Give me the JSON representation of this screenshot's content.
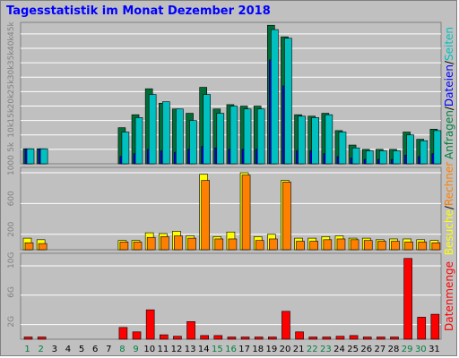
{
  "title": "Tagesstatistik im Monat Dezember 2018",
  "colors": {
    "anfragen": "#008040",
    "dateien": "#0000ff",
    "seiten": "#00c0c0",
    "besuche": "#ffff00",
    "rechner": "#ff8000",
    "datenmenge": "#ff0000",
    "weekday": "#000000",
    "weekend": "#008040"
  },
  "chart_data": [
    {
      "type": "bar",
      "series": [
        {
          "name": "Anfragen",
          "values": [
            5200,
            5200,
            0,
            0,
            0,
            0,
            0,
            12500,
            17000,
            26000,
            21000,
            19000,
            17500,
            26500,
            19000,
            20500,
            20000,
            20000,
            48000,
            44000,
            17000,
            16500,
            17500,
            11500,
            6500,
            5000,
            5000,
            5000,
            11000,
            8500,
            12000
          ]
        },
        {
          "name": "Dateien",
          "values": [
            5200,
            5200,
            0,
            0,
            0,
            0,
            0,
            2500,
            3500,
            5000,
            4500,
            4000,
            5000,
            6000,
            5500,
            5000,
            5000,
            5000,
            36000,
            27000,
            4500,
            4500,
            3500,
            2500,
            2000,
            1500,
            1500,
            1500,
            3000,
            2500,
            3500
          ]
        },
        {
          "name": "Seiten",
          "values": [
            5200,
            5200,
            0,
            0,
            0,
            0,
            0,
            11000,
            16000,
            24000,
            21500,
            19000,
            15000,
            24000,
            17500,
            20000,
            19000,
            19000,
            46500,
            43500,
            16500,
            16000,
            17000,
            11000,
            5500,
            4500,
            4500,
            4500,
            10000,
            8000,
            11500
          ]
        },
        {
          "name": "Anfragen",
          "values": []
        }
      ],
      "yticks": [
        "5k",
        "10k",
        "15k",
        "20k",
        "25k",
        "30k",
        "35k",
        "40k",
        "45k"
      ],
      "ylim": [
        0,
        49000
      ],
      "right_label": [
        "Anfragen",
        "/",
        "Dateien",
        "/",
        "Seiten"
      ]
    },
    {
      "type": "bar",
      "series": [
        {
          "name": "Besuche",
          "values": [
            150,
            130,
            0,
            0,
            0,
            0,
            0,
            120,
            120,
            220,
            210,
            240,
            180,
            980,
            170,
            230,
            1000,
            170,
            200,
            900,
            150,
            150,
            170,
            180,
            150,
            150,
            130,
            140,
            140,
            130,
            120
          ]
        },
        {
          "name": "Rechner",
          "values": [
            90,
            80,
            0,
            0,
            0,
            0,
            0,
            100,
            100,
            160,
            170,
            180,
            150,
            900,
            140,
            140,
            970,
            120,
            140,
            880,
            110,
            110,
            130,
            140,
            130,
            120,
            110,
            110,
            100,
            100,
            90
          ]
        }
      ],
      "yticks": [
        "200",
        "600",
        "1000"
      ],
      "ylim": [
        0,
        1070
      ],
      "right_label": [
        "Besuche",
        "/",
        "Rechner"
      ]
    },
    {
      "type": "bar",
      "series": [
        {
          "name": "Datenmenge",
          "values": [
            0.3,
            0.3,
            0,
            0,
            0,
            0,
            0,
            1.6,
            1.0,
            4.0,
            0.6,
            0.4,
            2.4,
            0.5,
            0.5,
            0.3,
            0.3,
            0.3,
            0.3,
            3.8,
            1.0,
            0.3,
            0.3,
            0.4,
            0.5,
            0.3,
            0.3,
            0.3,
            11.0,
            3.0,
            3.4
          ]
        }
      ],
      "yticks": [
        "2G",
        "6G",
        "10G"
      ],
      "ylim": [
        0,
        11.7
      ],
      "right_label": [
        "Datenmenge"
      ]
    }
  ],
  "x_labels": [
    "1",
    "2",
    "3",
    "4",
    "5",
    "6",
    "7",
    "8",
    "9",
    "10",
    "11",
    "12",
    "13",
    "14",
    "15",
    "16",
    "17",
    "18",
    "19",
    "20",
    "21",
    "22",
    "23",
    "24",
    "25",
    "26",
    "27",
    "28",
    "29",
    "30",
    "31"
  ],
  "weekend_days": [
    1,
    2,
    8,
    9,
    15,
    16,
    22,
    23,
    29,
    30
  ]
}
